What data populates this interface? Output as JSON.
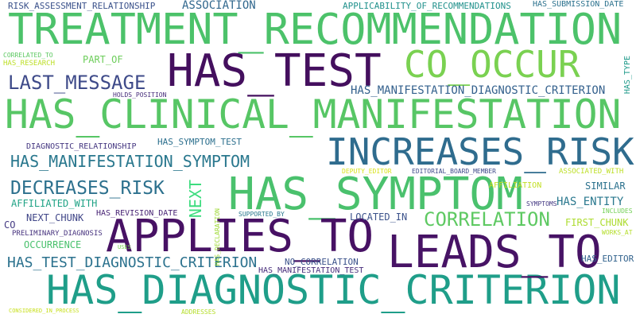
{
  "words": {
    "treatment_recommendation": {
      "text": "TREATMENT_RECOMMENDATION",
      "color": "#4cc26a"
    },
    "has_clinical_manifestation": {
      "text": "HAS_CLINICAL_MANIFESTATION",
      "color": "#57c665"
    },
    "has_diagnostic_criterion": {
      "text": "HAS_DIAGNOSTIC_CRITERION",
      "color": "#1f9e89"
    },
    "has_test": {
      "text": "HAS_TEST",
      "color": "#440f5e"
    },
    "co_occur": {
      "text": "CO_OCCUR",
      "color": "#7ad151"
    },
    "increases_risk": {
      "text": "INCREASES_RISK",
      "color": "#2f6c8e"
    },
    "has_symptom": {
      "text": "HAS_SYMPTOM",
      "color": "#4ac16d"
    },
    "applies_to": {
      "text": "APPLIES_TO",
      "color": "#471164"
    },
    "leads_to": {
      "text": "LEADS_TO",
      "color": "#471365"
    },
    "last_message": {
      "text": "LAST_MESSAGE",
      "color": "#3e4a89"
    },
    "has_manifestation_symptom": {
      "text": "HAS_MANIFESTATION_SYMPTOM",
      "color": "#2a788e"
    },
    "decreases_risk": {
      "text": "DECREASES_RISK",
      "color": "#2d718e"
    },
    "correlation": {
      "text": "CORRELATION",
      "color": "#5ec962"
    },
    "has_test_diagnostic_criterion": {
      "text": "HAS_TEST_DIAGNOSTIC_CRITERION",
      "color": "#2c728e"
    },
    "has_manifestation_diagnostic_criterion": {
      "text": "HAS_MANIFESTATION_DIAGNOSTIC_CRITERION",
      "color": "#34618d"
    },
    "risk_assessment_relationship": {
      "text": "RISK_ASSESSMENT_RELATIONSHIP",
      "color": "#3b528b"
    },
    "association": {
      "text": "ASSOCIATION",
      "color": "#31688e"
    },
    "applicability_of_recommendations": {
      "text": "APPLICABILITY_OF_RECOMMENDATIONS",
      "color": "#21918c"
    },
    "has_submission_date": {
      "text": "HAS_SUBMISSION_DATE",
      "color": "#2c728e"
    },
    "correlated_to": {
      "text": "CORRELATED_TO",
      "color": "#5ec962"
    },
    "has_research": {
      "text": "HAS_RESEARCH",
      "color": "#bddf26"
    },
    "part_of": {
      "text": "PART_OF",
      "color": "#6ccd5a"
    },
    "holds_position": {
      "text": "HOLDS_POSITION",
      "color": "#472d7b"
    },
    "has_type": {
      "text": "HAS_TYPE",
      "color": "#1f9a8a"
    },
    "diagnostic_relationship": {
      "text": "DIAGNOSTIC_RELATIONSHIP",
      "color": "#453781"
    },
    "has_symptom_test": {
      "text": "HAS_SYMPTOM_TEST",
      "color": "#2d708e"
    },
    "affiliated_with": {
      "text": "AFFILIATED_WITH",
      "color": "#20a386"
    },
    "next": {
      "text": "NEXT",
      "color": "#3ddc7e"
    },
    "next_chunk": {
      "text": "NEXT_CHUNK",
      "color": "#404688"
    },
    "has_revision_date": {
      "text": "HAS_REVISION_DATE",
      "color": "#482475"
    },
    "co": {
      "text": "CO",
      "color": "#443a83"
    },
    "preliminary_diagnosis": {
      "text": "PRELIMINARY_DIAGNOSIS",
      "color": "#46327e"
    },
    "occurrence": {
      "text": "OCCURRENCE",
      "color": "#4ac16d"
    },
    "uses": {
      "text": "USES",
      "color": "#7ad151"
    },
    "has_declaration": {
      "text": "HAS_DECLARATION",
      "color": "#a0da39"
    },
    "supported_by": {
      "text": "SUPPORTED_BY",
      "color": "#2a788e"
    },
    "located_in": {
      "text": "LOCATED_IN",
      "color": "#3b528b"
    },
    "deputy_editor": {
      "text": "DEPUTY_EDITOR",
      "color": "#d8e219"
    },
    "editorial_board_member": {
      "text": "EDITORIAL_BOARD_MEMBER",
      "color": "#3e4a89"
    },
    "associated_with": {
      "text": "ASSOCIATED_WITH",
      "color": "#bddf26"
    },
    "affiliation": {
      "text": "AFFILIATION",
      "color": "#c2df23"
    },
    "similar": {
      "text": "SIMILAR",
      "color": "#2c728e"
    },
    "symptoms": {
      "text": "SYMPTOMS",
      "color": "#443983"
    },
    "has_entity": {
      "text": "HAS_ENTITY",
      "color": "#2a788e"
    },
    "includes": {
      "text": "INCLUDES",
      "color": "#73d056"
    },
    "first_chunk": {
      "text": "FIRST_CHUNK",
      "color": "#addc30"
    },
    "works_at": {
      "text": "WORKS_AT",
      "color": "#b5de2b"
    },
    "no_correlation": {
      "text": "NO_CORRELATION",
      "color": "#3b528b"
    },
    "has_manifestation_test": {
      "text": "HAS_MANIFESTATION_TEST",
      "color": "#472d7b"
    },
    "has_editor": {
      "text": "HAS_EDITOR",
      "color": "#33638d"
    },
    "considered_in_process": {
      "text": "CONSIDERED_IN_PROCESS",
      "color": "#c8e020"
    },
    "addresses": {
      "text": "ADDRESSES",
      "color": "#b5de2b"
    }
  }
}
